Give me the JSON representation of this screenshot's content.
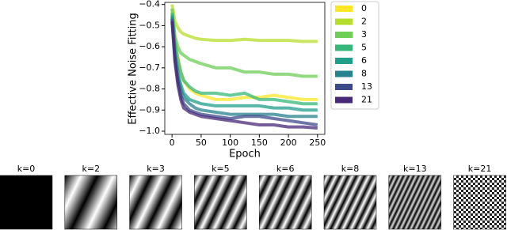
{
  "chart_data": {
    "type": "line",
    "xlabel": "Epoch",
    "ylabel": "Effective Noise Fitting",
    "x": [
      0,
      5,
      10,
      15,
      20,
      30,
      40,
      50,
      75,
      100,
      125,
      150,
      175,
      200,
      225,
      250
    ],
    "series": [
      {
        "name": "0",
        "color": "#fde725",
        "values": [
          -0.42,
          -0.55,
          -0.65,
          -0.72,
          -0.76,
          -0.8,
          -0.82,
          -0.83,
          -0.85,
          -0.85,
          -0.84,
          -0.84,
          -0.83,
          -0.84,
          -0.85,
          -0.85
        ]
      },
      {
        "name": "2",
        "color": "#b5de2b",
        "values": [
          -0.4,
          -0.48,
          -0.51,
          -0.53,
          -0.54,
          -0.55,
          -0.56,
          -0.565,
          -0.57,
          -0.57,
          -0.565,
          -0.57,
          -0.57,
          -0.57,
          -0.575,
          -0.575
        ]
      },
      {
        "name": "3",
        "color": "#6ece58",
        "values": [
          -0.42,
          -0.55,
          -0.6,
          -0.63,
          -0.64,
          -0.66,
          -0.67,
          -0.68,
          -0.7,
          -0.7,
          -0.72,
          -0.72,
          -0.73,
          -0.73,
          -0.74,
          -0.74
        ]
      },
      {
        "name": "5",
        "color": "#35b779",
        "values": [
          -0.44,
          -0.58,
          -0.66,
          -0.72,
          -0.76,
          -0.79,
          -0.81,
          -0.82,
          -0.82,
          -0.83,
          -0.82,
          -0.85,
          -0.85,
          -0.86,
          -0.87,
          -0.87
        ]
      },
      {
        "name": "6",
        "color": "#1f9e89",
        "values": [
          -0.45,
          -0.62,
          -0.72,
          -0.78,
          -0.82,
          -0.85,
          -0.86,
          -0.87,
          -0.88,
          -0.88,
          -0.88,
          -0.88,
          -0.89,
          -0.89,
          -0.9,
          -0.9
        ]
      },
      {
        "name": "8",
        "color": "#26828e",
        "values": [
          -0.46,
          -0.64,
          -0.74,
          -0.8,
          -0.84,
          -0.87,
          -0.89,
          -0.9,
          -0.91,
          -0.92,
          -0.92,
          -0.92,
          -0.92,
          -0.93,
          -0.93,
          -0.93
        ]
      },
      {
        "name": "13",
        "color": "#3e4989",
        "values": [
          -0.47,
          -0.66,
          -0.76,
          -0.83,
          -0.87,
          -0.9,
          -0.91,
          -0.92,
          -0.93,
          -0.94,
          -0.93,
          -0.93,
          -0.94,
          -0.95,
          -0.96,
          -0.97
        ]
      },
      {
        "name": "21",
        "color": "#482878",
        "values": [
          -0.48,
          -0.67,
          -0.78,
          -0.85,
          -0.89,
          -0.91,
          -0.92,
          -0.93,
          -0.94,
          -0.95,
          -0.96,
          -0.97,
          -0.97,
          -0.98,
          -0.98,
          -0.985
        ]
      }
    ],
    "xlim": [
      -12.5,
      262.5
    ],
    "xticks": [
      0,
      50,
      100,
      150,
      200,
      250
    ],
    "ylim": [
      -1.015,
      -0.39
    ],
    "yticks": [
      {
        "value": -1.0,
        "label": "−1.0"
      },
      {
        "value": -0.9,
        "label": "−0.9"
      },
      {
        "value": -0.8,
        "label": "−0.8"
      },
      {
        "value": -0.7,
        "label": "−0.7"
      },
      {
        "value": -0.6,
        "label": "−0.6"
      },
      {
        "value": -0.5,
        "label": "−0.5"
      },
      {
        "value": -0.4,
        "label": "−0.4"
      }
    ],
    "legend": "outside-right"
  },
  "images": [
    {
      "label": "k=0"
    },
    {
      "label": "k=2"
    },
    {
      "label": "k=3"
    },
    {
      "label": "k=5"
    },
    {
      "label": "k=6"
    },
    {
      "label": "k=8"
    },
    {
      "label": "k=13"
    },
    {
      "label": "k=21"
    }
  ]
}
